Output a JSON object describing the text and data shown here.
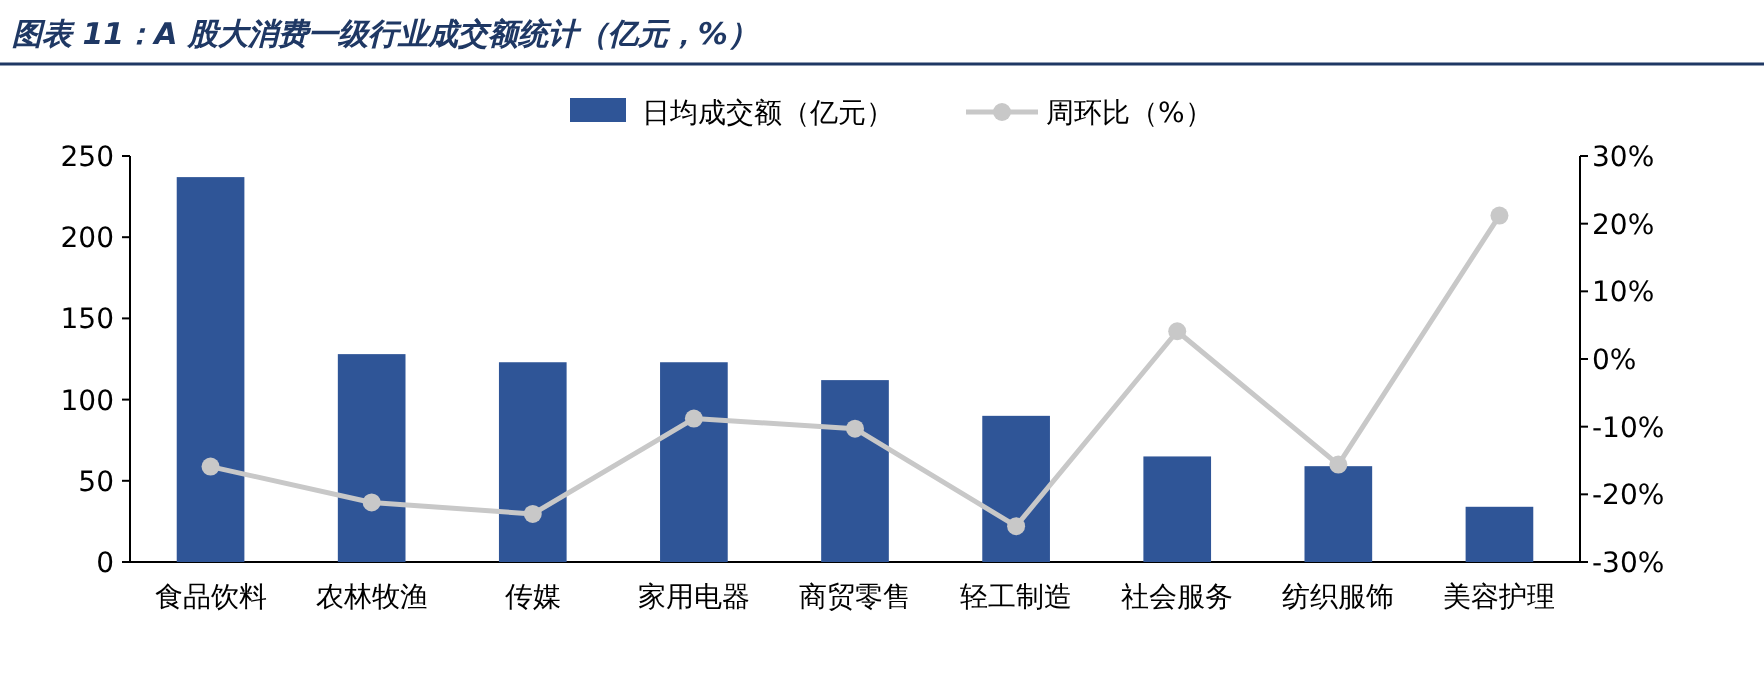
{
  "chart_data": {
    "type": "bar",
    "title": "图表 11：A 股大消费一级行业成交额统计（亿元，%）",
    "categories": [
      "食品饮料",
      "农林牧渔",
      "传媒",
      "家用电器",
      "商贸零售",
      "轻工制造",
      "社会服务",
      "纺织服饰",
      "美容护理"
    ],
    "series": [
      {
        "name": "日均成交额（亿元）",
        "color": "#2f5597",
        "values": [
          237,
          128,
          123,
          123,
          112,
          90,
          65,
          59,
          34
        ]
      },
      {
        "name": "周环比（%）",
        "type": "line",
        "axis": "y2",
        "color": "#c8c8c8",
        "marker": "circle",
        "values": [
          -15.9,
          -21.2,
          -22.9,
          -8.8,
          -10.3,
          -24.7,
          4.1,
          -15.6,
          21.2
        ]
      }
    ],
    "ylim": [
      0,
      250
    ],
    "yticks": [
      0,
      50,
      100,
      150,
      200,
      250
    ],
    "y2lim": [
      -30,
      30
    ],
    "y2ticks": [
      {
        "value": 30,
        "label": "30%"
      },
      {
        "value": 20,
        "label": "20%"
      },
      {
        "value": 10,
        "label": "10%"
      },
      {
        "value": 0,
        "label": "0%"
      },
      {
        "value": -10,
        "label": "-10%"
      },
      {
        "value": -20,
        "label": "-20%"
      },
      {
        "value": -30,
        "label": "-30%"
      }
    ],
    "legend": "top",
    "grid": false
  }
}
